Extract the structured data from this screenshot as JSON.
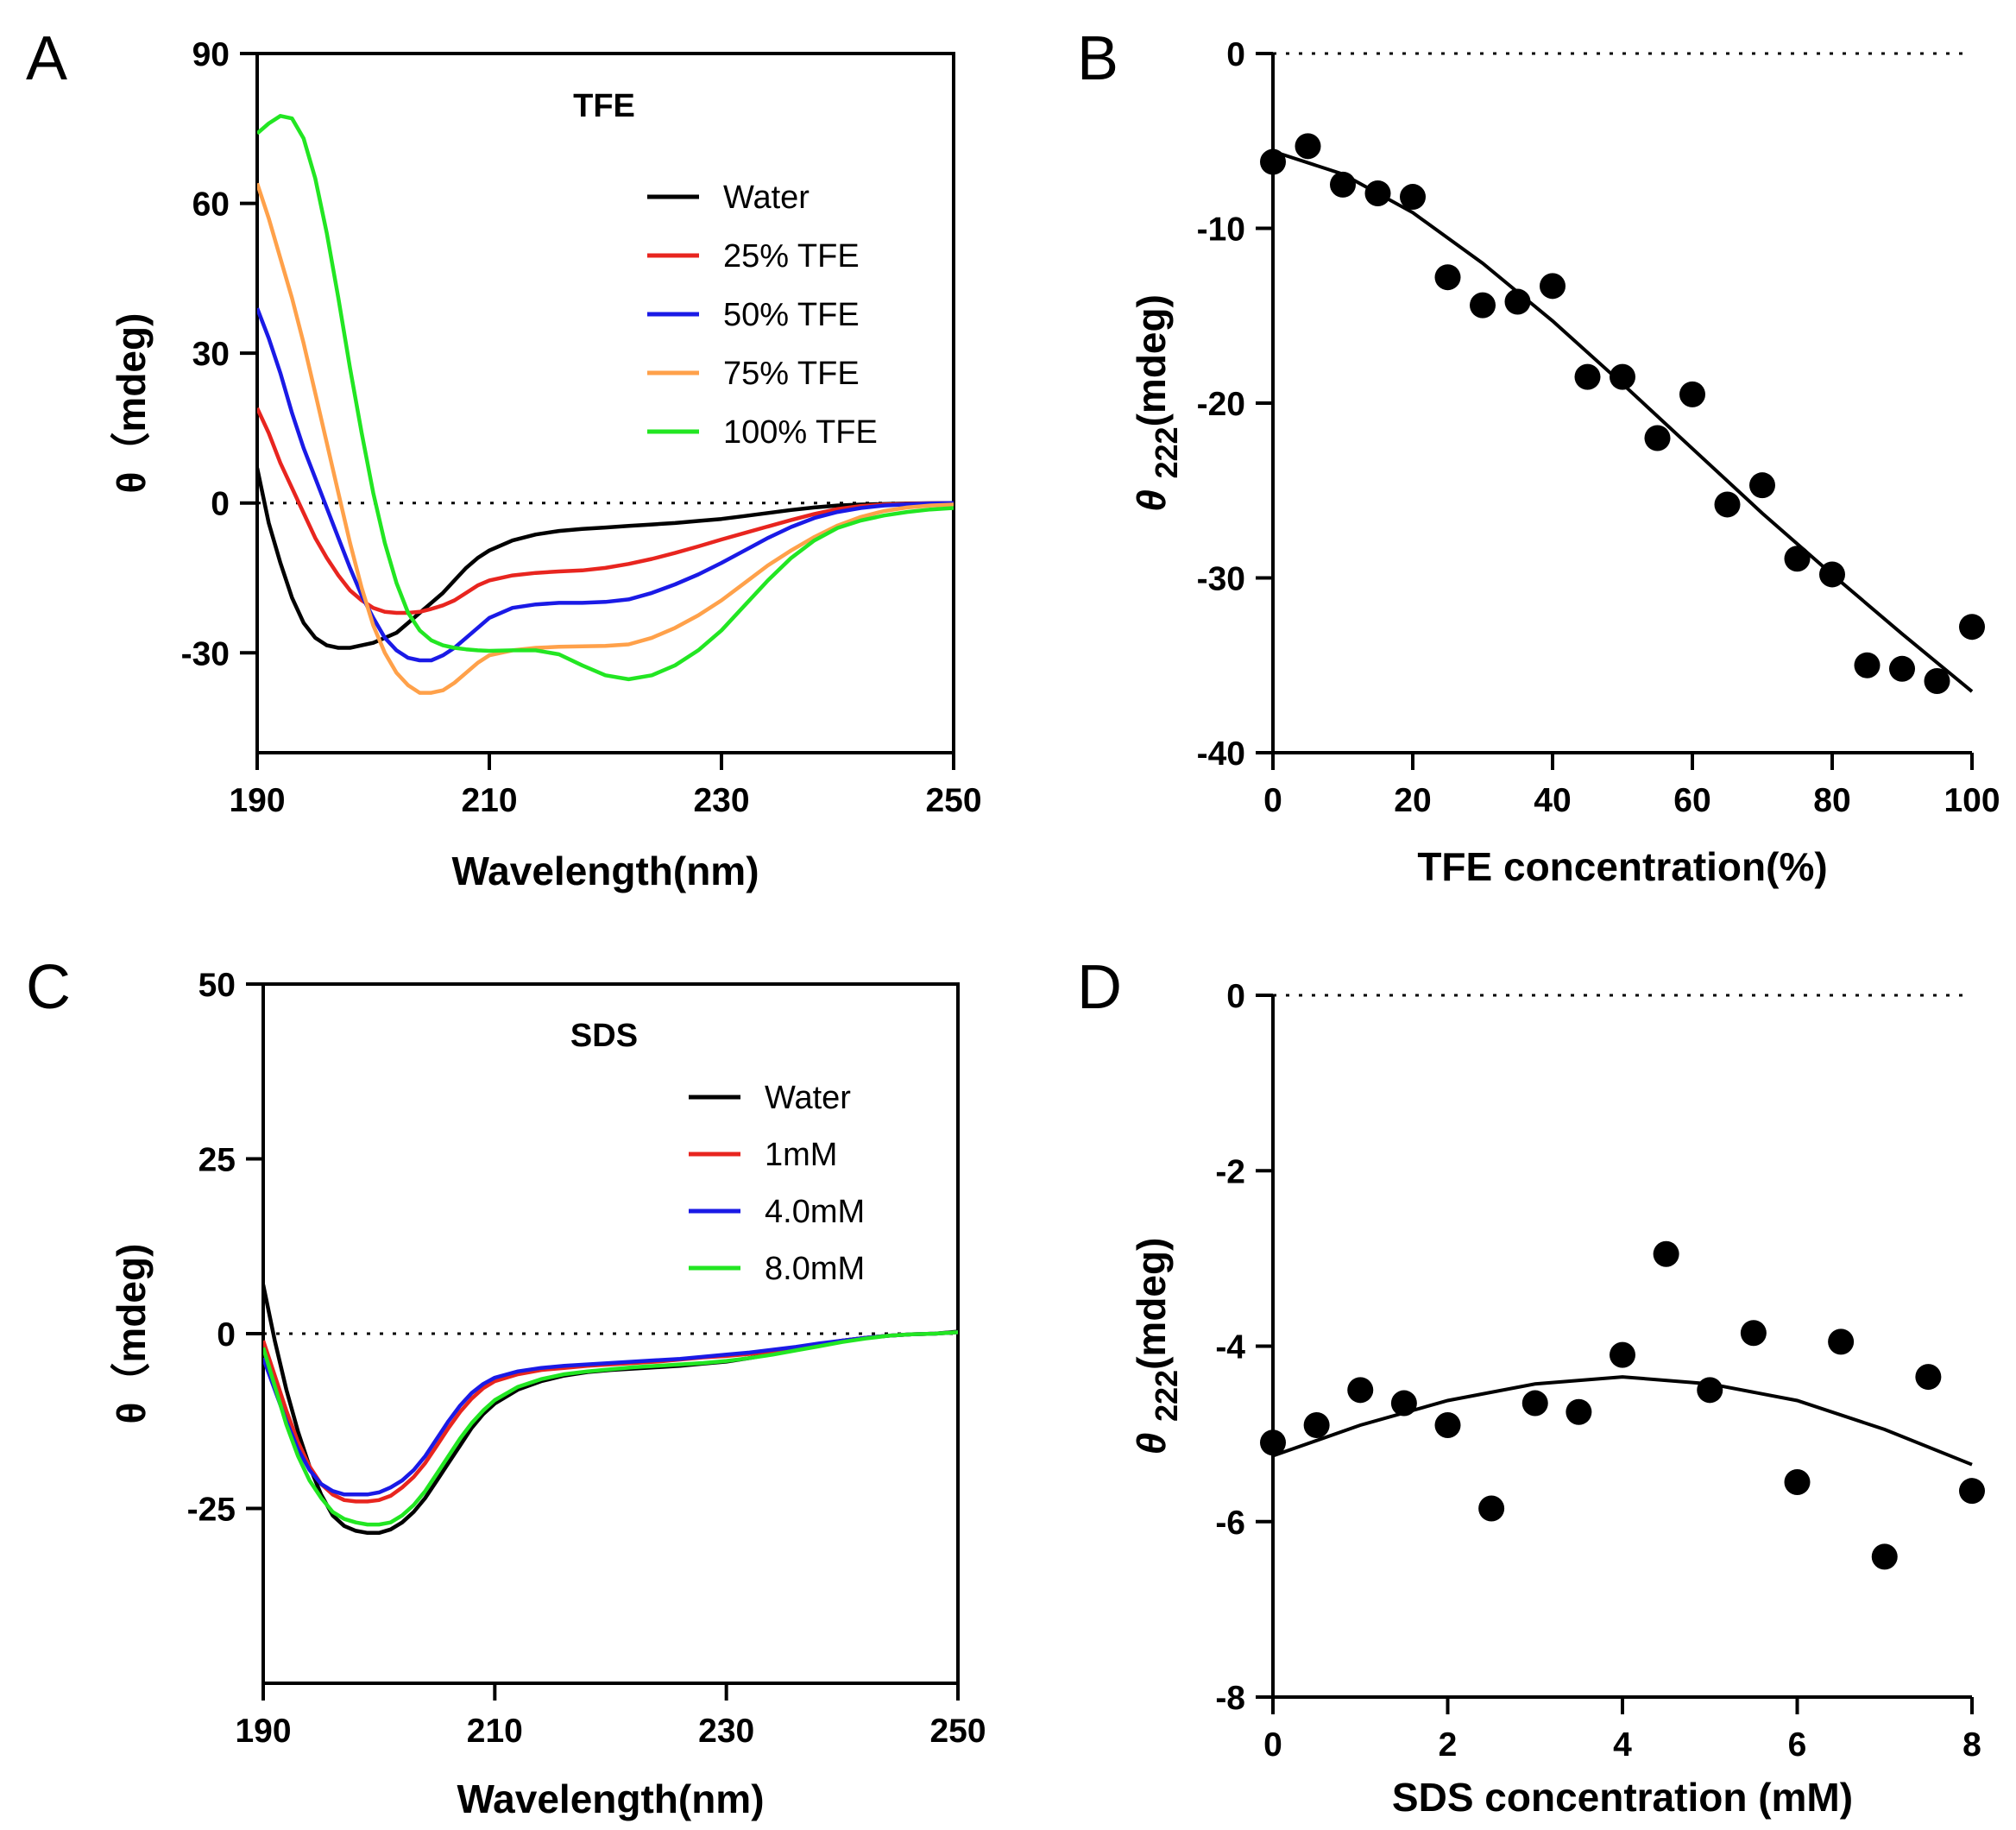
{
  "chart_data": [
    {
      "panel": "A",
      "type": "line",
      "title": "TFE",
      "xlabel": "Wavelength(nm)",
      "ylabel": "θ（mdeg)",
      "xlim": [
        190,
        250
      ],
      "ylim": [
        -50,
        90
      ],
      "xticks": [
        190,
        210,
        230,
        250
      ],
      "yticks": [
        90,
        60,
        30,
        0,
        -30
      ],
      "zero_line": true,
      "legend_position": "top-right",
      "x": [
        190,
        191,
        192,
        193,
        194,
        195,
        196,
        197,
        198,
        199,
        200,
        201,
        202,
        203,
        204,
        205,
        206,
        207,
        208,
        209,
        210,
        212,
        214,
        216,
        218,
        220,
        222,
        224,
        226,
        228,
        230,
        232,
        234,
        236,
        238,
        240,
        242,
        244,
        246,
        248,
        250
      ],
      "series": [
        {
          "name": "Water",
          "color": "#000000",
          "values": [
            7,
            -4,
            -12,
            -19,
            -24,
            -27,
            -28.5,
            -29,
            -29,
            -28.5,
            -28,
            -27,
            -26,
            -24,
            -22,
            -20,
            -18,
            -15.5,
            -13,
            -11,
            -9.5,
            -7.5,
            -6.3,
            -5.6,
            -5.2,
            -4.9,
            -4.6,
            -4.3,
            -4,
            -3.6,
            -3.2,
            -2.6,
            -2,
            -1.4,
            -0.9,
            -0.5,
            -0.3,
            -0.2,
            -0.1,
            -0.05,
            0
          ]
        },
        {
          "name": "25% TFE",
          "color": "#e8251f",
          "values": [
            19,
            14,
            8,
            3,
            -2,
            -7,
            -11,
            -14.5,
            -17.5,
            -19.5,
            -21,
            -21.8,
            -22,
            -22,
            -21.8,
            -21.2,
            -20.5,
            -19.5,
            -18,
            -16.5,
            -15.5,
            -14.5,
            -14,
            -13.7,
            -13.5,
            -13,
            -12.2,
            -11.2,
            -10,
            -8.7,
            -7.3,
            -6,
            -4.7,
            -3.4,
            -2.2,
            -1.2,
            -0.6,
            -0.3,
            -0.15,
            -0.05,
            0
          ]
        },
        {
          "name": "50% TFE",
          "color": "#1a1ae6",
          "values": [
            39,
            33,
            26,
            18,
            11,
            5,
            -1,
            -7,
            -13,
            -18.5,
            -23,
            -27,
            -29.5,
            -31,
            -31.5,
            -31.5,
            -30.5,
            -29,
            -27,
            -25,
            -23,
            -21,
            -20.3,
            -20,
            -20,
            -19.8,
            -19.3,
            -18,
            -16.3,
            -14.3,
            -12,
            -9.5,
            -7,
            -4.8,
            -3,
            -1.8,
            -1,
            -0.5,
            -0.25,
            -0.1,
            0
          ]
        },
        {
          "name": "75% TFE",
          "color": "#ffa14a",
          "values": [
            64,
            57,
            49,
            41,
            32,
            22,
            12,
            2,
            -8,
            -17,
            -24.5,
            -30,
            -34,
            -36.5,
            -38,
            -38,
            -37.5,
            -36,
            -34,
            -32,
            -30.5,
            -29.5,
            -29,
            -28.8,
            -28.7,
            -28.6,
            -28.3,
            -27,
            -25,
            -22.5,
            -19.5,
            -16,
            -12.5,
            -9.5,
            -6.8,
            -4.5,
            -2.8,
            -1.6,
            -0.9,
            -0.5,
            -0.3
          ]
        },
        {
          "name": "100% TFE",
          "color": "#22e622",
          "values": [
            74,
            76,
            77.5,
            77,
            73,
            65,
            54,
            41,
            27,
            14,
            2,
            -8,
            -16,
            -22,
            -25.5,
            -27.5,
            -28.5,
            -29,
            -29.3,
            -29.5,
            -29.6,
            -29.5,
            -29.5,
            -30.3,
            -32.5,
            -34.5,
            -35.3,
            -34.5,
            -32.5,
            -29.5,
            -25.5,
            -20.5,
            -15.5,
            -11,
            -7.5,
            -5,
            -3.5,
            -2.5,
            -1.8,
            -1.3,
            -1
          ]
        }
      ]
    },
    {
      "panel": "B",
      "type": "scatter",
      "xlabel": "TFE concentration(%)",
      "ylabel_main": "θ",
      "ylabel_sub": "222",
      "ylabel_unit": "(mdeg)",
      "xlim": [
        0,
        100
      ],
      "ylim": [
        -40,
        0
      ],
      "xticks": [
        0,
        20,
        40,
        60,
        80,
        100
      ],
      "yticks": [
        0,
        -10,
        -20,
        -30,
        -40
      ],
      "zero_line": true,
      "points": {
        "x": [
          0,
          5,
          10,
          15,
          20,
          25,
          30,
          35,
          40,
          45,
          50,
          55,
          60,
          65,
          70,
          75,
          80,
          85,
          90,
          95,
          100
        ],
        "y": [
          -6.2,
          -5.3,
          -7.5,
          -8,
          -8.2,
          -12.8,
          -14.4,
          -14.2,
          -13.3,
          -18.5,
          -18.5,
          -22,
          -19.5,
          -25.8,
          -24.7,
          -28.9,
          -29.8,
          -35,
          -35.2,
          -35.9,
          -32.8
        ]
      },
      "fit": {
        "x": [
          0,
          10,
          20,
          30,
          40,
          50,
          60,
          70,
          80,
          90,
          100
        ],
        "y": [
          -5.6,
          -6.9,
          -9.1,
          -12,
          -15.3,
          -18.9,
          -22.6,
          -26.3,
          -29.8,
          -33.2,
          -36.5
        ]
      }
    },
    {
      "panel": "C",
      "type": "line",
      "title": "SDS",
      "xlabel": "Wavelength(nm)",
      "ylabel": "θ（mdeg)",
      "xlim": [
        190,
        250
      ],
      "ylim": [
        -50,
        50
      ],
      "xticks": [
        190,
        210,
        230,
        250
      ],
      "yticks": [
        50,
        25,
        0,
        -25
      ],
      "zero_line": true,
      "legend_position": "top-right",
      "x": [
        190,
        191,
        192,
        193,
        194,
        195,
        196,
        197,
        198,
        199,
        200,
        201,
        202,
        203,
        204,
        205,
        206,
        207,
        208,
        209,
        210,
        212,
        214,
        216,
        218,
        220,
        222,
        224,
        226,
        228,
        230,
        232,
        234,
        236,
        238,
        240,
        242,
        244,
        246,
        248,
        250
      ],
      "series": [
        {
          "name": "Water",
          "color": "#000000",
          "values": [
            7,
            -1,
            -8,
            -14,
            -19,
            -23,
            -26,
            -27.5,
            -28.2,
            -28.5,
            -28.5,
            -28,
            -27,
            -25.5,
            -23.5,
            -21,
            -18.5,
            -16,
            -13.5,
            -11.5,
            -10,
            -8,
            -6.8,
            -6,
            -5.5,
            -5.2,
            -5,
            -4.8,
            -4.6,
            -4.3,
            -4,
            -3.5,
            -2.9,
            -2.2,
            -1.6,
            -1,
            -0.6,
            -0.3,
            -0.1,
            0,
            0.3
          ]
        },
        {
          "name": "1mM",
          "color": "#e8251f",
          "values": [
            -1,
            -6,
            -11,
            -15.5,
            -19,
            -21.5,
            -23,
            -23.8,
            -24,
            -24,
            -23.8,
            -23.2,
            -22,
            -20.5,
            -18.5,
            -16,
            -13.5,
            -11.2,
            -9.3,
            -7.8,
            -6.8,
            -5.8,
            -5.2,
            -4.9,
            -4.6,
            -4.4,
            -4.2,
            -4,
            -3.7,
            -3.4,
            -3.2,
            -2.9,
            -2.5,
            -2,
            -1.5,
            -1,
            -0.6,
            -0.3,
            -0.1,
            0,
            0.2
          ]
        },
        {
          "name": "4.0mM",
          "color": "#1a1ae6",
          "values": [
            -3.5,
            -8,
            -12.5,
            -16.5,
            -19.5,
            -21.5,
            -22.5,
            -23,
            -23,
            -23,
            -22.7,
            -22,
            -21,
            -19.5,
            -17.5,
            -15,
            -12.5,
            -10.3,
            -8.5,
            -7.2,
            -6.3,
            -5.4,
            -4.9,
            -4.6,
            -4.4,
            -4.2,
            -4,
            -3.8,
            -3.6,
            -3.3,
            -3,
            -2.7,
            -2.3,
            -1.9,
            -1.4,
            -1,
            -0.6,
            -0.3,
            -0.1,
            0,
            0.2
          ]
        },
        {
          "name": "8.0mM",
          "color": "#22e622",
          "values": [
            -2,
            -7.5,
            -13,
            -17.5,
            -21,
            -23.5,
            -25.5,
            -26.5,
            -27,
            -27.3,
            -27.3,
            -27,
            -26,
            -24.5,
            -22.5,
            -20,
            -17.5,
            -15,
            -12.8,
            -11,
            -9.5,
            -7.6,
            -6.5,
            -5.8,
            -5.4,
            -5.1,
            -4.8,
            -4.6,
            -4.4,
            -4.2,
            -3.9,
            -3.5,
            -3,
            -2.4,
            -1.8,
            -1.2,
            -0.7,
            -0.3,
            -0.1,
            0,
            0.2
          ]
        }
      ]
    },
    {
      "panel": "D",
      "type": "scatter",
      "xlabel": "SDS concentration (mM)",
      "ylabel_main": "θ",
      "ylabel_sub": "222",
      "ylabel_unit": "(mdeg)",
      "xlim": [
        0,
        8
      ],
      "ylim": [
        -8,
        0
      ],
      "xticks": [
        0,
        2,
        4,
        6,
        8
      ],
      "yticks": [
        0,
        -2,
        -4,
        -6,
        -8
      ],
      "zero_line": true,
      "points": {
        "x": [
          0,
          0.5,
          1,
          1.5,
          2,
          2.5,
          3,
          3.5,
          4,
          4.5,
          5,
          5.5,
          6,
          6.5,
          7,
          7.5,
          8
        ],
        "y": [
          -5.1,
          -4.9,
          -4.5,
          -4.65,
          -4.9,
          -5.85,
          -4.65,
          -4.75,
          -4.1,
          -2.95,
          -4.5,
          -3.85,
          -5.55,
          -3.95,
          -6.4,
          -4.35,
          -5.65
        ]
      },
      "fit": {
        "x": [
          0,
          1,
          2,
          3,
          4,
          5,
          6,
          7,
          8
        ],
        "y": [
          -5.25,
          -4.9,
          -4.62,
          -4.43,
          -4.35,
          -4.43,
          -4.62,
          -4.95,
          -5.35
        ]
      }
    }
  ],
  "panel_labels": [
    "A",
    "B",
    "C",
    "D"
  ]
}
